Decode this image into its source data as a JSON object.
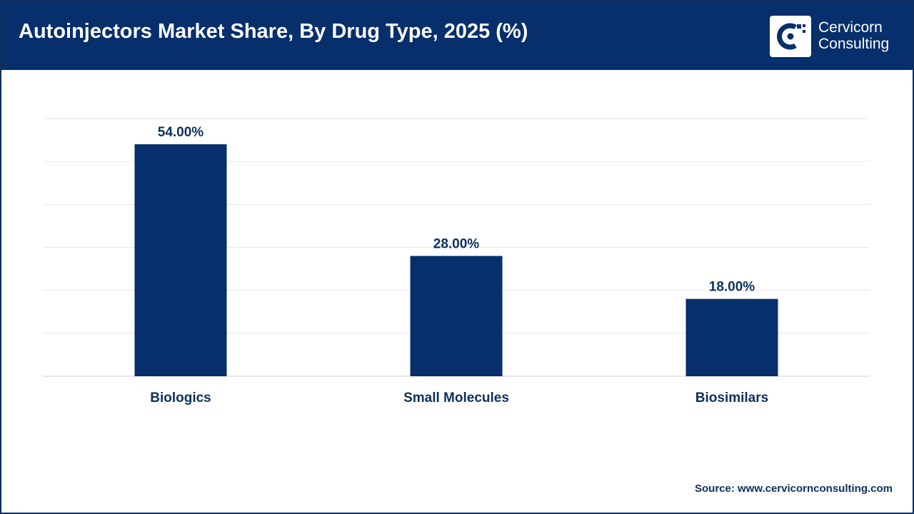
{
  "header": {
    "title": "Autoinjectors Market Share, By Drug Type, 2025 (%)",
    "background_color": "#062f6b"
  },
  "logo": {
    "line1": "Cervicorn",
    "line2": "Consulting",
    "icon": "cervicorn-logo-icon"
  },
  "chart_data": {
    "type": "bar",
    "title": "Autoinjectors Market Share, By Drug Type, 2025 (%)",
    "xlabel": "",
    "ylabel": "",
    "categories": [
      "Biologics",
      "Small Molecules",
      "Biosimilars"
    ],
    "values": [
      54.0,
      28.0,
      18.0
    ],
    "data_labels": [
      "54.00%",
      "28.00%",
      "18.00%"
    ],
    "ylim": [
      0,
      60
    ],
    "grid": true,
    "legend": "none",
    "bar_color": "#062f6b"
  },
  "source": "Source: www.cervicornconsulting.com"
}
